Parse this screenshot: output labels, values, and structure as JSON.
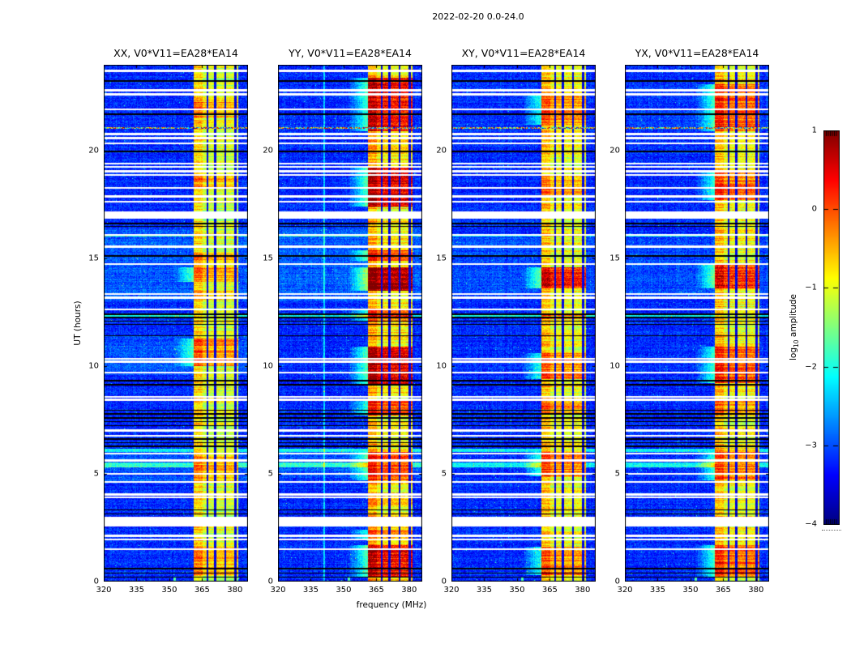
{
  "figure": {
    "suptitle": "2022-02-20 0.0-24.0"
  },
  "chart_data": {
    "type": "heatmap",
    "title": "2022-02-20 0.0-24.0",
    "xlabel": "frequency (MHz)",
    "ylabel": "UT (hours)",
    "xlim": [
      320,
      386
    ],
    "ylim": [
      0,
      24
    ],
    "xticks": [
      320,
      335,
      350,
      365,
      380
    ],
    "yticks": [
      0,
      5,
      10,
      15,
      20
    ],
    "grid": false,
    "panels": [
      {
        "label": "XX, V0*V11=EA28*EA14",
        "seed": 101,
        "base_band": 0.58,
        "has_vline": false,
        "hot_spots": [
          [
            21.5,
            22.4,
            0.1
          ],
          [
            18.2,
            19.1,
            0.08
          ],
          [
            14.8,
            15.3,
            0.1
          ],
          [
            13.9,
            14.6,
            0.14
          ],
          [
            13.1,
            13.5,
            0.08
          ],
          [
            10.0,
            11.3,
            0.14
          ],
          [
            8.3,
            8.6,
            0.08
          ],
          [
            4.6,
            5.9,
            0.1
          ],
          [
            0.3,
            1.6,
            0.1
          ]
        ],
        "bg_light": [
          [
            13.0,
            16.4,
            0.05
          ],
          [
            9.6,
            11.4,
            0.04
          ],
          [
            4.6,
            6.0,
            0.04
          ]
        ]
      },
      {
        "label": "YY, V0*V11=EA28*EA14",
        "seed": 202,
        "base_band": 0.63,
        "has_vline": true,
        "hot_spots": [
          [
            20.9,
            23.4,
            0.2
          ],
          [
            17.4,
            19.3,
            0.24
          ],
          [
            14.9,
            15.4,
            0.15
          ],
          [
            13.5,
            14.6,
            0.3
          ],
          [
            12.1,
            12.6,
            0.16
          ],
          [
            9.1,
            10.9,
            0.24
          ],
          [
            7.7,
            8.4,
            0.14
          ],
          [
            4.7,
            6.0,
            0.16
          ],
          [
            1.9,
            2.4,
            0.12
          ],
          [
            0.2,
            1.7,
            0.22
          ]
        ],
        "bg_light": [
          [
            13.0,
            16.4,
            0.05
          ],
          [
            4.8,
            6.0,
            0.04
          ]
        ]
      },
      {
        "label": "XY, V0*V11=EA28*EA14",
        "seed": 303,
        "base_band": 0.6,
        "has_vline": false,
        "hot_spots": [
          [
            21.2,
            22.6,
            0.13
          ],
          [
            17.9,
            18.9,
            0.1
          ],
          [
            13.6,
            14.6,
            0.22
          ],
          [
            12.2,
            12.5,
            0.1
          ],
          [
            9.4,
            10.6,
            0.13
          ],
          [
            7.8,
            8.3,
            0.1
          ],
          [
            4.9,
            6.0,
            0.15
          ],
          [
            0.3,
            1.6,
            0.13
          ]
        ],
        "bg_light": [
          [
            13.2,
            16.0,
            0.03
          ]
        ]
      },
      {
        "label": "YX, V0*V11=EA28*EA14",
        "seed": 404,
        "base_band": 0.61,
        "has_vline": false,
        "hot_spots": [
          [
            20.9,
            23.1,
            0.16
          ],
          [
            17.7,
            19.1,
            0.13
          ],
          [
            13.6,
            14.8,
            0.2
          ],
          [
            9.2,
            10.9,
            0.16
          ],
          [
            7.8,
            8.4,
            0.1
          ],
          [
            4.7,
            6.0,
            0.13
          ],
          [
            0.2,
            1.7,
            0.16
          ]
        ],
        "bg_light": [
          [
            13.2,
            16.0,
            0.03
          ],
          [
            21.0,
            23.0,
            0.02
          ]
        ]
      }
    ],
    "colorbar": {
      "label_prefix": "log",
      "label_sub": "10",
      "label_suffix": " amplitude",
      "ticks": [
        1,
        0,
        -1,
        -2,
        -3,
        -4
      ],
      "vmin": -4,
      "vmax": 1,
      "colormap": "jet"
    },
    "features": {
      "rfi_band": {
        "f0": 361.0,
        "f1": 381.6,
        "edge_bright_to": 365.2,
        "dark_lines_mhz": [
          367.5,
          371.0,
          375.6,
          380.2
        ]
      },
      "data_gaps_ut": [
        [
          16.84,
          17.21
        ],
        [
          2.55,
          3.02
        ]
      ],
      "white_stripes_ut": [
        23.72,
        22.82,
        22.62,
        21.93,
        20.78,
        20.6,
        20.35,
        19.4,
        19.25,
        19.05,
        18.88,
        18.28,
        17.88,
        17.64,
        16.1,
        15.55,
        14.75,
        13.35,
        13.18,
        12.64,
        10.35,
        10.22,
        9.7,
        8.58,
        8.44,
        7.02,
        6.78,
        5.95,
        5.62,
        5.0,
        4.62,
        4.05,
        3.92,
        2.12,
        1.95,
        1.5
      ],
      "black_lines_ut": [
        23.25,
        21.7,
        19.97,
        16.62,
        16.5,
        15.12,
        12.42,
        12.26,
        12.1,
        11.94,
        11.42,
        9.32,
        9.15,
        7.95,
        7.78,
        7.6,
        7.42,
        7.25,
        6.62,
        6.45,
        6.28,
        3.32,
        3.14,
        0.6,
        0.4,
        0.2
      ],
      "light_rows_ut": [
        [
          5.32,
          5.52
        ],
        [
          6.02,
          6.16
        ],
        [
          12.3,
          12.42
        ],
        [
          16.02,
          16.12
        ]
      ],
      "speckle_row_ut": 21.07,
      "bottom_spur_mhz": 352.5,
      "vline_mhz": 341.0
    }
  }
}
